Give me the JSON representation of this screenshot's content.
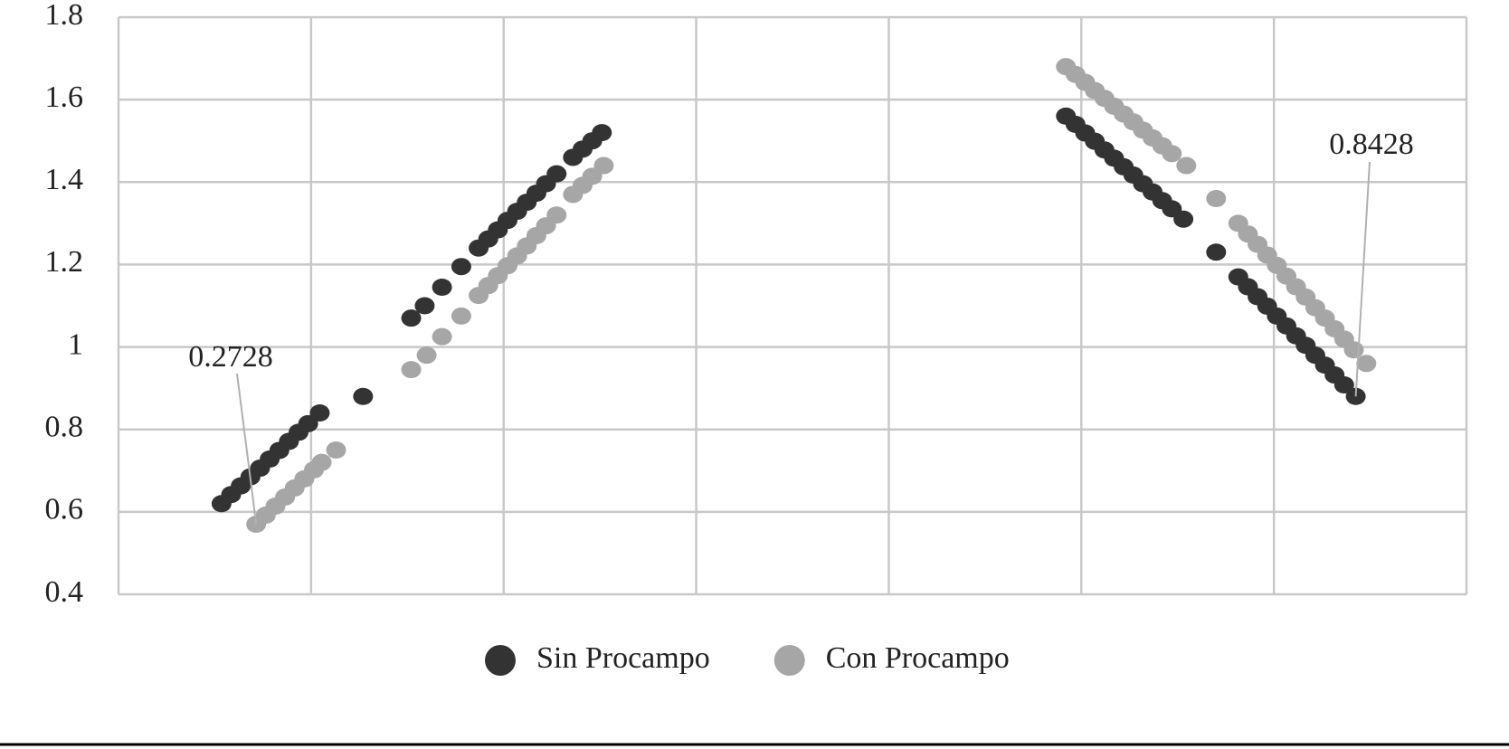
{
  "chart_data": {
    "type": "scatter",
    "xlim": [
      0,
      7
    ],
    "xticks": [
      0,
      1,
      2,
      3,
      4,
      5,
      6,
      7
    ],
    "ylim": [
      0.4,
      1.8
    ],
    "yticks": [
      0.4,
      0.6,
      0.8,
      1,
      1.2,
      1.4,
      1.6,
      1.8
    ],
    "grid": true,
    "legend": "bottom",
    "series": [
      {
        "name": "Sin Procampo",
        "color": "#333333",
        "x": [
          0.535,
          0.585,
          0.635,
          0.685,
          0.735,
          0.785,
          0.835,
          0.885,
          0.935,
          0.985,
          1.045,
          1.27,
          1.52,
          1.59,
          1.68,
          1.78,
          1.87,
          1.92,
          1.97,
          2.02,
          2.07,
          2.12,
          2.17,
          2.22,
          2.275,
          2.36,
          2.41,
          2.46,
          2.51,
          4.92,
          4.97,
          5.02,
          5.07,
          5.12,
          5.17,
          5.22,
          5.27,
          5.32,
          5.37,
          5.42,
          5.47,
          5.53,
          5.7,
          5.815,
          5.865,
          5.915,
          5.965,
          6.015,
          6.065,
          6.115,
          6.165,
          6.215,
          6.265,
          6.315,
          6.365,
          6.425
        ],
        "values": [
          0.62,
          0.642,
          0.663,
          0.685,
          0.706,
          0.728,
          0.749,
          0.771,
          0.793,
          0.814,
          0.84,
          0.88,
          1.07,
          1.1,
          1.145,
          1.195,
          1.24,
          1.262,
          1.284,
          1.307,
          1.329,
          1.351,
          1.373,
          1.396,
          1.42,
          1.46,
          1.48,
          1.5,
          1.52,
          1.56,
          1.54,
          1.519,
          1.499,
          1.478,
          1.458,
          1.437,
          1.417,
          1.396,
          1.376,
          1.355,
          1.335,
          1.31,
          1.23,
          1.17,
          1.146,
          1.122,
          1.099,
          1.075,
          1.051,
          1.027,
          1.004,
          0.98,
          0.956,
          0.932,
          0.908,
          0.88
        ]
      },
      {
        "name": "Con Procampo",
        "color": "#a6a6a6",
        "x": [
          0.715,
          0.765,
          0.815,
          0.865,
          0.915,
          0.965,
          1.015,
          1.055,
          1.13,
          1.52,
          1.6,
          1.68,
          1.78,
          1.87,
          1.92,
          1.97,
          2.02,
          2.07,
          2.12,
          2.17,
          2.22,
          2.275,
          2.36,
          2.41,
          2.46,
          2.52,
          4.92,
          4.97,
          5.02,
          5.07,
          5.12,
          5.17,
          5.22,
          5.27,
          5.32,
          5.37,
          5.42,
          5.47,
          5.545,
          5.7,
          5.815,
          5.865,
          5.915,
          5.965,
          6.015,
          6.065,
          6.115,
          6.165,
          6.215,
          6.265,
          6.315,
          6.365,
          6.415,
          6.48
        ],
        "values": [
          0.57,
          0.592,
          0.614,
          0.636,
          0.658,
          0.68,
          0.702,
          0.72,
          0.75,
          0.945,
          0.98,
          1.025,
          1.075,
          1.125,
          1.149,
          1.173,
          1.197,
          1.221,
          1.245,
          1.27,
          1.294,
          1.32,
          1.37,
          1.392,
          1.414,
          1.44,
          1.68,
          1.661,
          1.642,
          1.622,
          1.603,
          1.584,
          1.565,
          1.546,
          1.526,
          1.507,
          1.488,
          1.469,
          1.44,
          1.36,
          1.3,
          1.274,
          1.249,
          1.223,
          1.198,
          1.172,
          1.146,
          1.121,
          1.095,
          1.07,
          1.044,
          1.019,
          0.993,
          0.96
        ]
      }
    ],
    "annotations": [
      "0.2728",
      "0.8428"
    ]
  }
}
